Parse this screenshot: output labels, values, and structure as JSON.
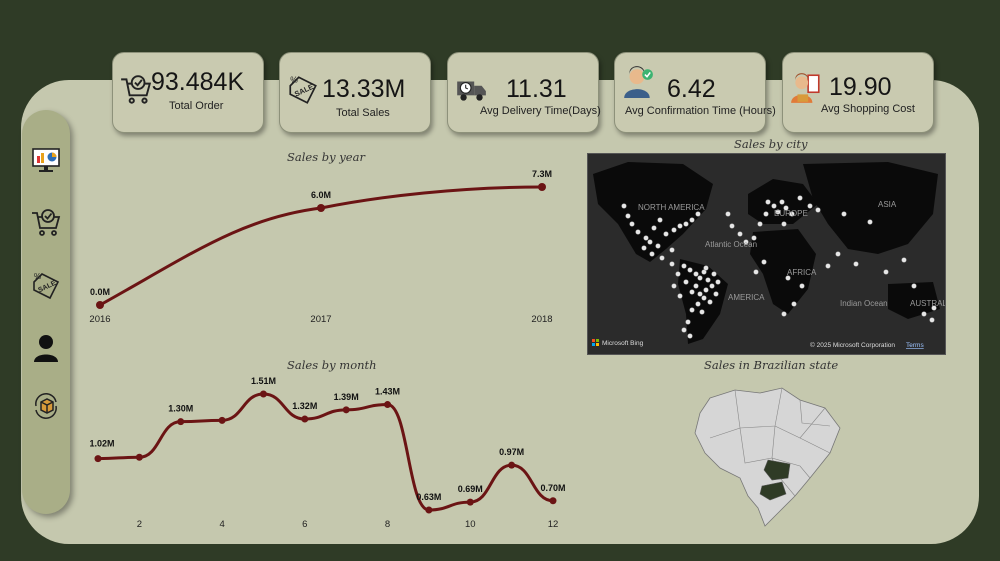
{
  "kpis": [
    {
      "value": "93.484K",
      "label": "Total Order",
      "icon": "cart-check-icon"
    },
    {
      "value": "13.33M",
      "label": "Total Sales",
      "icon": "sale-tag-icon"
    },
    {
      "value": "11.31",
      "label": "Avg Delivery Time(Days)",
      "icon": "delivery-truck-icon"
    },
    {
      "value": "6.42",
      "label": "Avg Confirmation Time (Hours)",
      "icon": "support-agent-icon"
    },
    {
      "value": "19.90",
      "label": "Avg Shopping Cost",
      "icon": "shopkeeper-icon"
    }
  ],
  "sidebar": {
    "items": [
      {
        "icon": "dashboard-monitor-icon"
      },
      {
        "icon": "cart-check-icon"
      },
      {
        "icon": "sale-tag-icon"
      },
      {
        "icon": "user-icon"
      },
      {
        "icon": "delivery-box-icon"
      }
    ]
  },
  "map": {
    "title": "Sales by city",
    "labels": [
      "NORTH AMERICA",
      "EUROPE",
      "ASIA",
      "Atlantic Ocean",
      "AFRICA",
      "AMERICA",
      "Indian Ocean",
      "AUSTRAL"
    ],
    "bing": "Microsoft Bing",
    "copyright": "© 2025 Microsoft Corporation",
    "terms": "Terms"
  },
  "state_map": {
    "title": "Sales in Brazilian state"
  },
  "colors": {
    "line": "#6b1414",
    "background": "#2f3b26",
    "panel": "#c5c8ae",
    "highlight_state": "#2f3b26"
  },
  "chart_data": [
    {
      "type": "line",
      "title": "Sales by year",
      "categories": [
        "2016",
        "2017",
        "2018"
      ],
      "values": [
        0.0,
        6.0,
        7.3
      ],
      "data_labels": [
        "0.0M",
        "6.0M",
        "7.3M"
      ]
    },
    {
      "type": "line",
      "title": "Sales by month",
      "x": [
        1,
        2,
        3,
        4,
        5,
        6,
        7,
        8,
        9,
        10,
        11,
        12
      ],
      "x_tick_labels": [
        "2",
        "4",
        "6",
        "8",
        "10",
        "12"
      ],
      "values": [
        1.02,
        1.03,
        1.3,
        1.31,
        1.51,
        1.32,
        1.39,
        1.43,
        0.63,
        0.69,
        0.97,
        0.7
      ],
      "data_labels": [
        "1.02M",
        "",
        "1.30M",
        "",
        "1.51M",
        "1.32M",
        "1.39M",
        "1.43M",
        "0.63M",
        "0.69M",
        "0.97M",
        "0.70M"
      ]
    }
  ]
}
